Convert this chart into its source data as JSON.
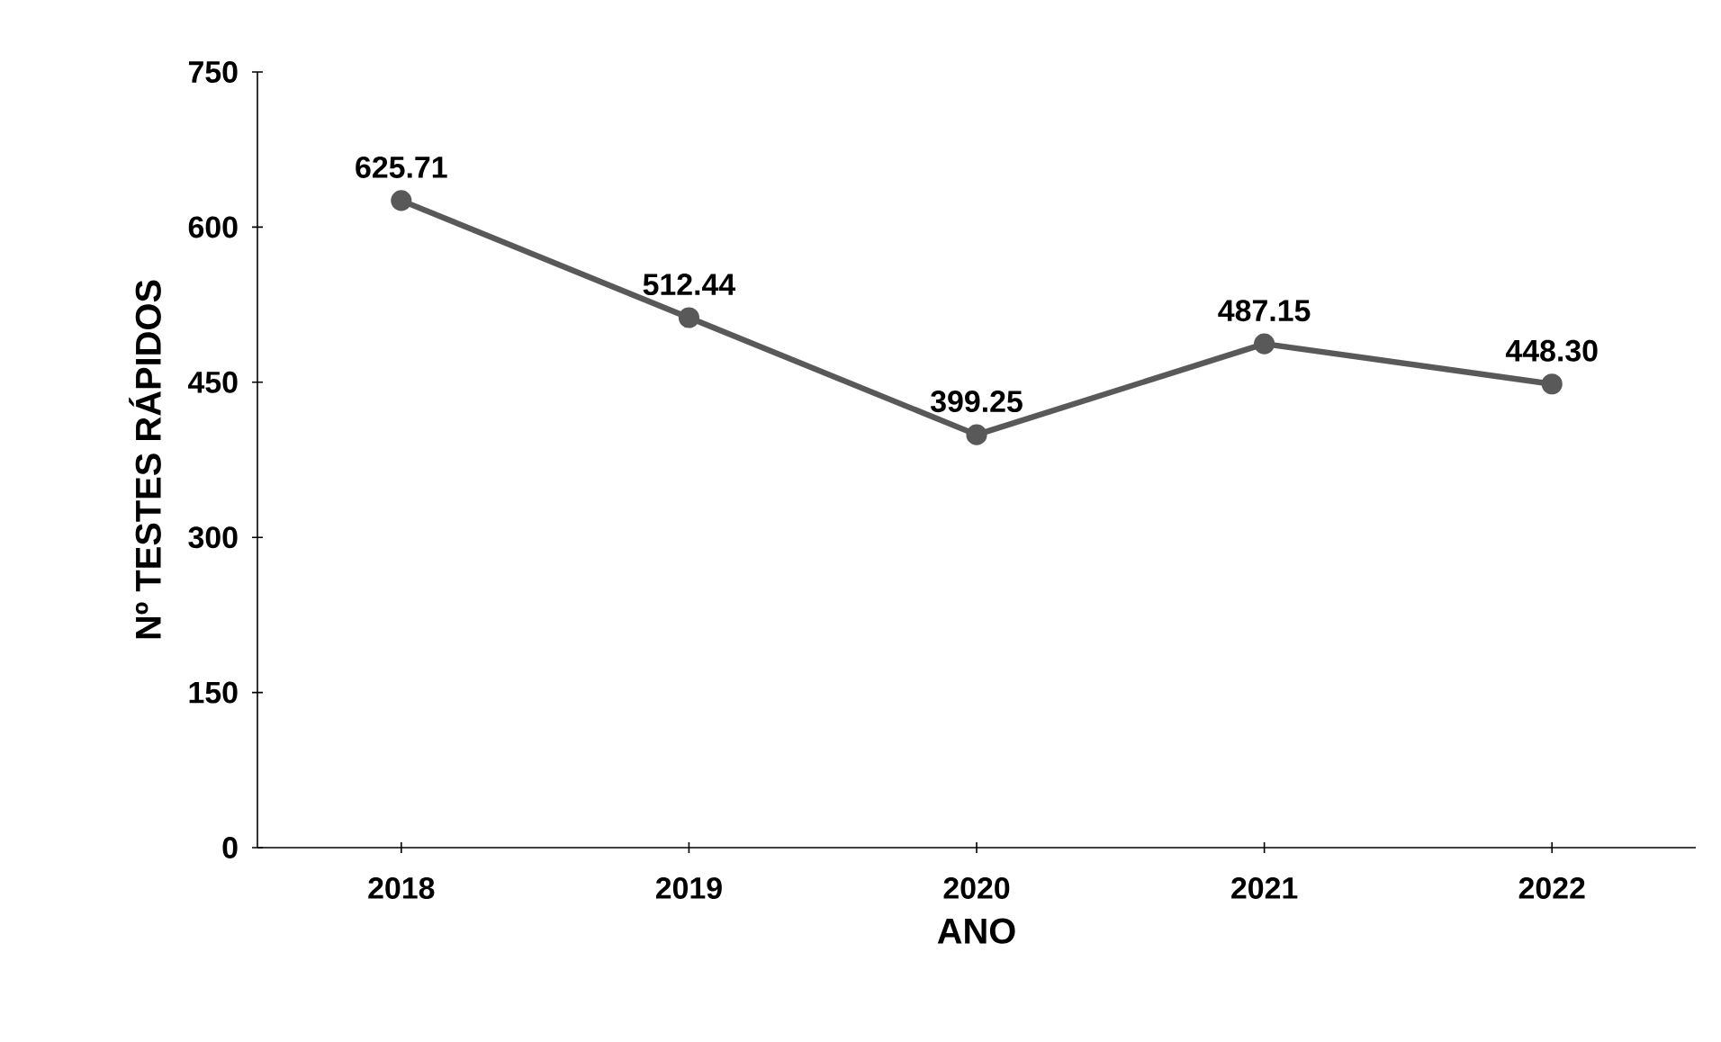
{
  "chart_data": {
    "type": "line",
    "xlabel": "ANO",
    "ylabel": "Nº TESTES RÁPIDOS",
    "categories": [
      "2018",
      "2019",
      "2020",
      "2021",
      "2022"
    ],
    "series": [
      {
        "color": "#595959",
        "values": [
          625.71,
          512.44,
          399.25,
          487.15,
          448.3
        ]
      }
    ],
    "value_labels": [
      "625.71",
      "512.44",
      "399.25",
      "487.15",
      "448.30"
    ],
    "ylim": [
      0,
      750
    ],
    "yticks": [
      0,
      150,
      300,
      450,
      600,
      750
    ],
    "marker": "circle",
    "line_style": "solid",
    "grid": false
  }
}
